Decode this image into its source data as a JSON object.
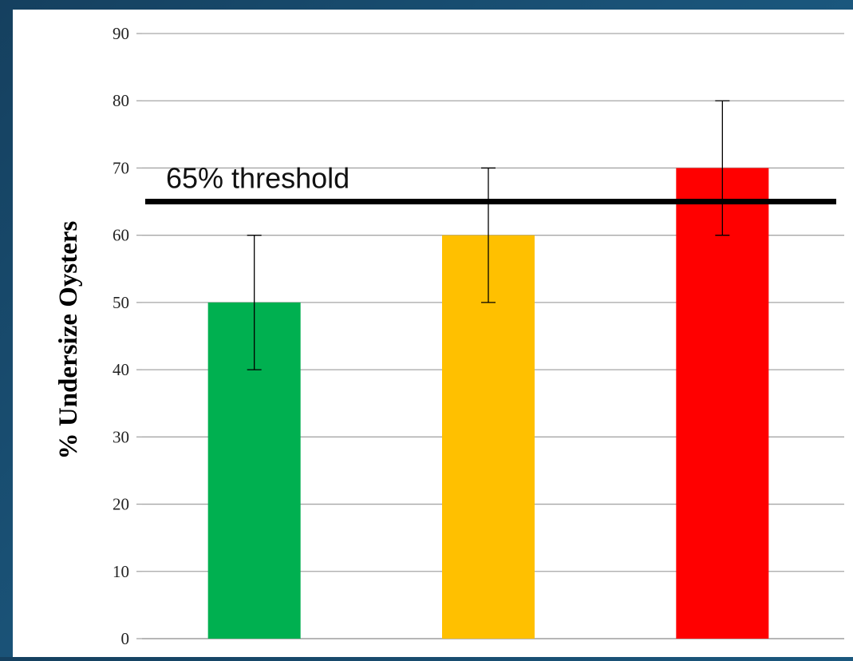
{
  "chart_data": {
    "type": "bar",
    "title": "",
    "xlabel": "",
    "ylabel": "% Undersize Oysters",
    "ylim": [
      0,
      90
    ],
    "yticks": [
      0,
      10,
      20,
      30,
      40,
      50,
      60,
      70,
      80,
      90
    ],
    "grid": true,
    "categories": [
      "",
      "",
      ""
    ],
    "values": [
      50,
      60,
      70
    ],
    "error_bars": [
      {
        "low": 40,
        "high": 60
      },
      {
        "low": 50,
        "high": 70
      },
      {
        "low": 60,
        "high": 80
      }
    ],
    "bar_colors": [
      "#00b050",
      "#ffc000",
      "#ff0000"
    ],
    "reference_line": {
      "value": 65,
      "label": "65% threshold",
      "color": "#000000"
    }
  },
  "background": {
    "panel_color": "#ffffff",
    "frame_color": "#1a5378"
  }
}
